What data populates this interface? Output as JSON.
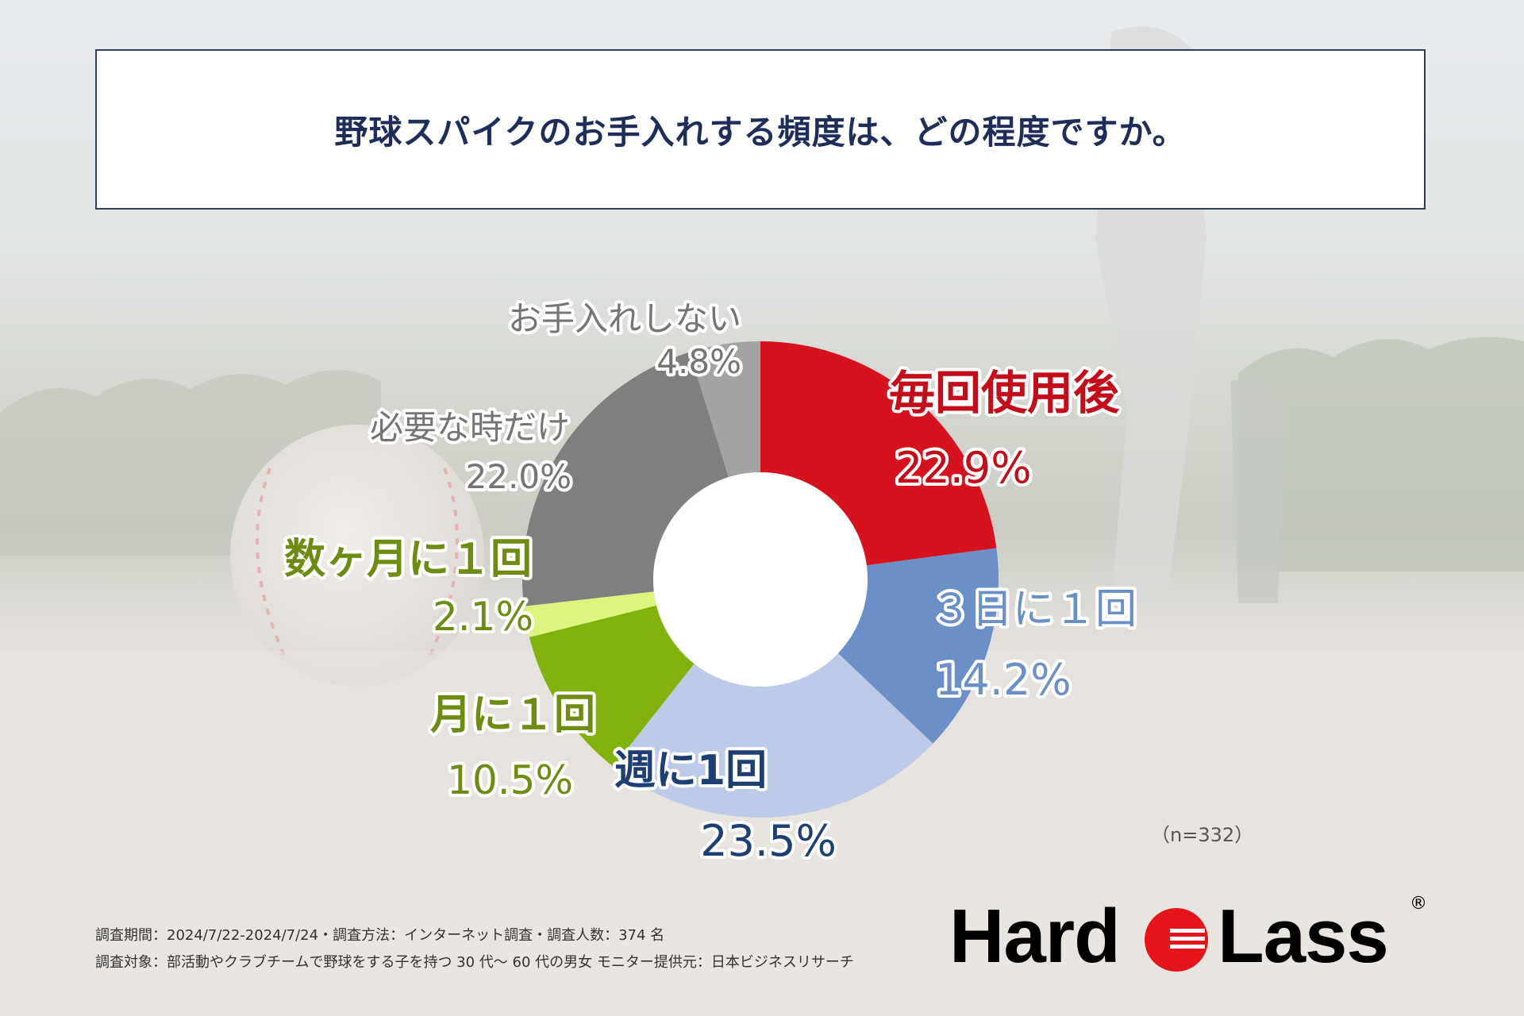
{
  "header": {
    "title": "野球スパイクのお手入れする頻度は、どの程度ですか。"
  },
  "chart_data": {
    "type": "pie",
    "title": "野球スパイクのお手入れする頻度は、どの程度ですか。",
    "sample_size": "（n=332）",
    "slices": [
      {
        "label": "毎回使用後",
        "value": 22.9,
        "value_label": "22.9%",
        "color": "#d7121f",
        "label_color": "#c40d19"
      },
      {
        "label": "３日に１回",
        "value": 14.2,
        "value_label": "14.2%",
        "color": "#6b8fc7",
        "label_color": "#6b8fc7"
      },
      {
        "label": "週に1回",
        "value": 23.5,
        "value_label": "23.5%",
        "color": "#bdcbe9",
        "label_color": "#1d3f74"
      },
      {
        "label": "月に１回",
        "value": 10.5,
        "value_label": "10.5%",
        "color": "#82b30c",
        "label_color": "#6e8c12"
      },
      {
        "label": "数ヶ月に１回",
        "value": 2.1,
        "value_label": "2.1%",
        "color": "#ddf57e",
        "label_color": "#6e8c12"
      },
      {
        "label": "必要な時だけ",
        "value": 22.0,
        "value_label": "22.0%",
        "color": "#7f7f7f",
        "label_color": "#757575"
      },
      {
        "label": "お手入れしない",
        "value": 4.8,
        "value_label": "4.8%",
        "color": "#a3a3a3",
        "label_color": "#757575"
      }
    ]
  },
  "footer": {
    "line1": "調査期間：2024/7/22-2024/7/24・調査方法：インターネット調査・調査人数：374 名",
    "line2": "調査対象：部活動やクラブチームで野球をする子を持つ 30 代〜 60 代の男女 モニター提供元：日本ビジネスリサーチ"
  },
  "logo": {
    "left": "Hard",
    "right": "Lass",
    "mark": "®"
  }
}
